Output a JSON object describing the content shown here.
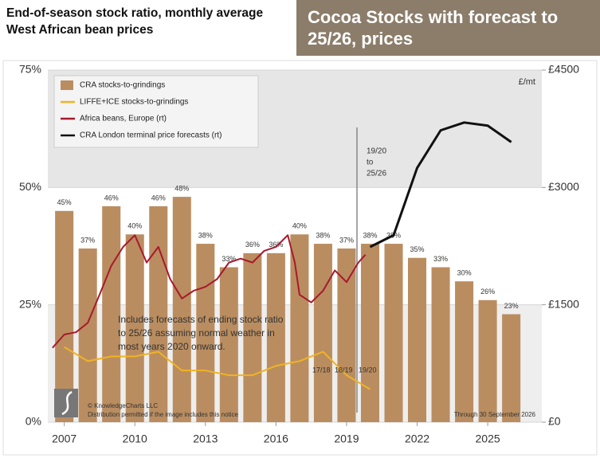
{
  "chart_data": {
    "type": "bar",
    "title": "Cocoa Stocks with forecast to 25/26, prices",
    "subtitle": "End-of-season stock ratio, monthly average West African bean prices",
    "xlim": [
      2006.3,
      2027.3
    ],
    "xticks": [
      2007,
      2010,
      2013,
      2016,
      2019,
      2022,
      2025
    ],
    "ylim": [
      0,
      75
    ],
    "yticks": [
      {
        "value": 0,
        "label": "0%"
      },
      {
        "value": 25,
        "label": "25%"
      },
      {
        "value": 50,
        "label": "50%"
      },
      {
        "value": 75,
        "label": "75%"
      }
    ],
    "y2lim": [
      0,
      4500
    ],
    "y2ticks": [
      {
        "value": 0,
        "label": "£0"
      },
      {
        "value": 1500,
        "label": "£1500"
      },
      {
        "value": 3000,
        "label": "£3000"
      },
      {
        "value": 4500,
        "label": "£4500"
      }
    ],
    "y2_label": "£/mt",
    "legend": "upper left",
    "series": [
      {
        "name": "CRA stocks-to-grindings",
        "color": "#ba8d60",
        "type": "bar",
        "x": [
          2007,
          2008,
          2009,
          2010,
          2011,
          2012,
          2013,
          2014,
          2015,
          2016,
          2017,
          2018,
          2019,
          2020,
          2021,
          2022,
          2023,
          2024,
          2025,
          2026
        ],
        "values": [
          45,
          37,
          46,
          40,
          46,
          48,
          38,
          33,
          36,
          36,
          40,
          38,
          37,
          38,
          38,
          35,
          33,
          30,
          26,
          23
        ],
        "value_labels": [
          "45%",
          "37%",
          "46%",
          "40%",
          "46%",
          "48%",
          "38%",
          "33%",
          "36%",
          "36%",
          "40%",
          "38%",
          "37%",
          "38%",
          "38%",
          "35%",
          "33%",
          "30%",
          "26%",
          "23%"
        ]
      },
      {
        "name": "LIFFE+ICE stocks-to-grindings",
        "color": "#f0b323",
        "type": "line",
        "x": [
          2007,
          2008,
          2009,
          2010,
          2011,
          2012,
          2013,
          2014,
          2015,
          2016,
          2017,
          2018,
          2019,
          2020
        ],
        "values": [
          16,
          13,
          14,
          14,
          15,
          11,
          11,
          10,
          10,
          12,
          13,
          15,
          10,
          7
        ]
      },
      {
        "name": "Africa beans, Europe (rt)",
        "color": "#a8192e",
        "type": "line",
        "axis": "y2",
        "x": [
          2006.5,
          2007,
          2007.5,
          2008,
          2008.5,
          2009,
          2009.5,
          2010,
          2010.5,
          2011,
          2011.5,
          2012,
          2012.5,
          2013,
          2013.5,
          2014,
          2014.5,
          2015,
          2015.5,
          2016,
          2016.5,
          2016.8,
          2017,
          2017.5,
          2018,
          2018.5,
          2019,
          2019.5,
          2019.8
        ],
        "values": [
          950,
          1120,
          1150,
          1270,
          1630,
          2000,
          2240,
          2390,
          2040,
          2240,
          1830,
          1580,
          1680,
          1730,
          1830,
          2040,
          2090,
          2040,
          2190,
          2240,
          2390,
          2040,
          1630,
          1530,
          1680,
          1940,
          1790,
          2040,
          2140
        ]
      },
      {
        "name": "CRA London terminal price forecasts (rt)",
        "color": "#111111",
        "type": "line",
        "axis": "y2",
        "x": [
          2020,
          2021,
          2022,
          2023,
          2024,
          2025,
          2026
        ],
        "values": [
          2240,
          2390,
          3250,
          3730,
          3830,
          3790,
          3580
        ]
      }
    ],
    "annotations": {
      "forecast": [
        "19/20",
        "to",
        "25/26"
      ],
      "note": [
        "Includes forecasts of ending stock ratio",
        "to 25/26 assuming normal weather in",
        "most years 2020 onward."
      ],
      "seasons": [
        "17/18",
        "18/19",
        "19/20"
      ],
      "copyright": [
        "© KnowledgeCharts LLC",
        "Distribution permitted if the image includes this notice"
      ],
      "through": "Through 30 September 2026"
    }
  }
}
